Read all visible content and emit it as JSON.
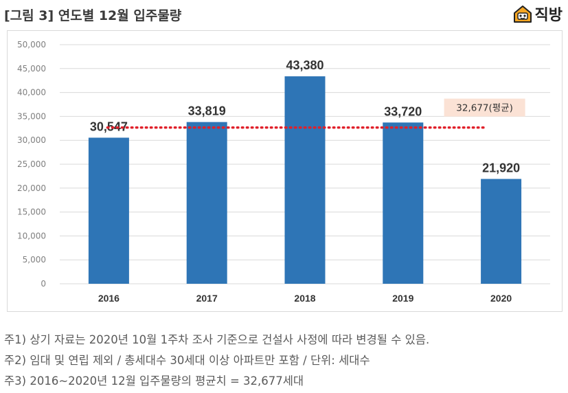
{
  "header": {
    "title": "[그림 3] 연도별 12월 입주물량",
    "logo_text": "직방",
    "logo_icon": "house-face-icon"
  },
  "colors": {
    "bar": "#2e75b6",
    "average_line": "#e0202a",
    "average_label_bg": "#fbe2d5",
    "grid": "#d9d9d9",
    "tick_text": "#7f7f7f",
    "value_text": "#333333"
  },
  "chart_data": {
    "type": "bar",
    "categories": [
      "2016",
      "2017",
      "2018",
      "2019",
      "2020"
    ],
    "values": [
      30547,
      33819,
      43380,
      33720,
      21920
    ],
    "value_labels": [
      "30,547",
      "33,819",
      "43,380",
      "33,720",
      "21,920"
    ],
    "ylim": [
      0,
      50000
    ],
    "yticks": [
      0,
      5000,
      10000,
      15000,
      20000,
      25000,
      30000,
      35000,
      40000,
      45000,
      50000
    ],
    "ytick_labels": [
      "0",
      "5,000",
      "10,000",
      "15,000",
      "20,000",
      "25,000",
      "30,000",
      "35,000",
      "40,000",
      "45,000",
      "50,000"
    ],
    "grid": true,
    "average": {
      "value": 32677,
      "label": "32,677(평균)",
      "style": "dotted"
    }
  },
  "notes": [
    "주1) 상기 자료는 2020년 10월 1주차 조사 기준으로 건설사 사정에 따라 변경될 수 있음.",
    "주2) 임대 및 연립 제외 / 총세대수 30세대 이상 아파트만 포함 / 단위: 세대수",
    "주3) 2016~2020년 12월 입주물량의 평균치 = 32,677세대"
  ]
}
